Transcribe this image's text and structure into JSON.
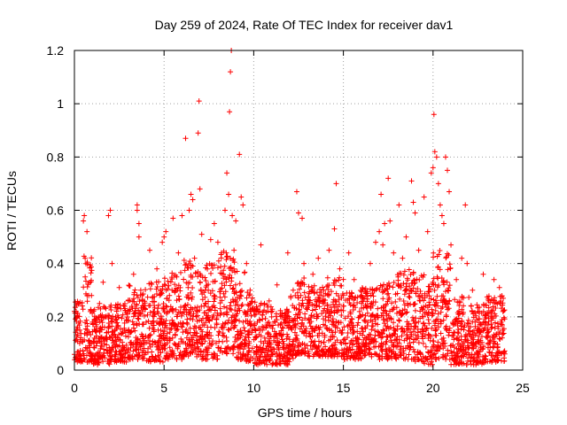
{
  "chart_data": {
    "type": "scatter",
    "title": "Day 259 of 2024, Rate Of TEC Index for receiver dav1",
    "xlabel": "GPS time / hours",
    "ylabel": "ROTI / TECUs",
    "xlim": [
      0,
      25
    ],
    "ylim": [
      0,
      1.2
    ],
    "xticks": [
      0,
      5,
      10,
      15,
      20,
      25
    ],
    "xtick_labels": [
      "0",
      "5",
      "10",
      "15",
      "20",
      "25"
    ],
    "yticks": [
      0,
      0.2,
      0.4,
      0.6,
      0.8,
      1,
      1.2
    ],
    "ytick_labels": [
      "0",
      "0.2",
      "0.4",
      "0.6",
      "0.8",
      "1",
      "1.2"
    ],
    "grid": true,
    "marker": "plus",
    "series": [
      {
        "name": "dav1",
        "color": "#ff0000",
        "points": [
          [
            0.1,
            0.22
          ],
          [
            0.3,
            0.15
          ],
          [
            0.5,
            0.56
          ],
          [
            0.55,
            0.58
          ],
          [
            0.6,
            0.42
          ],
          [
            0.6,
            0.35
          ],
          [
            0.7,
            0.52
          ],
          [
            0.8,
            0.28
          ],
          [
            1.0,
            0.18
          ],
          [
            1.2,
            0.12
          ],
          [
            1.4,
            0.25
          ],
          [
            1.6,
            0.33
          ],
          [
            1.8,
            0.14
          ],
          [
            1.9,
            0.58
          ],
          [
            2.0,
            0.6
          ],
          [
            2.1,
            0.4
          ],
          [
            2.3,
            0.2
          ],
          [
            2.5,
            0.31
          ],
          [
            2.8,
            0.15
          ],
          [
            3.0,
            0.26
          ],
          [
            3.3,
            0.36
          ],
          [
            3.5,
            0.62
          ],
          [
            3.5,
            0.6
          ],
          [
            3.6,
            0.55
          ],
          [
            3.6,
            0.5
          ],
          [
            3.7,
            0.3
          ],
          [
            4.0,
            0.18
          ],
          [
            4.2,
            0.45
          ],
          [
            4.4,
            0.22
          ],
          [
            4.6,
            0.38
          ],
          [
            4.9,
            0.48
          ],
          [
            5.0,
            0.5
          ],
          [
            5.1,
            0.52
          ],
          [
            5.3,
            0.28
          ],
          [
            5.5,
            0.57
          ],
          [
            5.7,
            0.35
          ],
          [
            5.8,
            0.44
          ],
          [
            6.0,
            0.58
          ],
          [
            6.2,
            0.87
          ],
          [
            6.4,
            0.6
          ],
          [
            6.5,
            0.66
          ],
          [
            6.6,
            0.64
          ],
          [
            6.7,
            0.42
          ],
          [
            6.9,
            0.89
          ],
          [
            6.95,
            1.01
          ],
          [
            7.0,
            0.68
          ],
          [
            7.1,
            0.51
          ],
          [
            7.3,
            0.3
          ],
          [
            7.6,
            0.49
          ],
          [
            7.8,
            0.55
          ],
          [
            8.0,
            0.48
          ],
          [
            8.2,
            0.44
          ],
          [
            8.4,
            0.6
          ],
          [
            8.5,
            0.74
          ],
          [
            8.6,
            0.66
          ],
          [
            8.65,
            0.97
          ],
          [
            8.7,
            1.12
          ],
          [
            8.75,
            1.2
          ],
          [
            8.8,
            0.58
          ],
          [
            8.9,
            0.45
          ],
          [
            9.0,
            0.56
          ],
          [
            9.2,
            0.81
          ],
          [
            9.3,
            0.65
          ],
          [
            9.4,
            0.62
          ],
          [
            9.6,
            0.4
          ],
          [
            9.8,
            0.3
          ],
          [
            10.0,
            0.22
          ],
          [
            10.2,
            0.18
          ],
          [
            10.4,
            0.47
          ],
          [
            10.6,
            0.25
          ],
          [
            10.8,
            0.14
          ],
          [
            11.0,
            0.2
          ],
          [
            11.3,
            0.32
          ],
          [
            11.6,
            0.16
          ],
          [
            11.9,
            0.44
          ],
          [
            12.2,
            0.3
          ],
          [
            12.4,
            0.67
          ],
          [
            12.5,
            0.59
          ],
          [
            12.7,
            0.57
          ],
          [
            12.8,
            0.4
          ],
          [
            13.0,
            0.25
          ],
          [
            13.3,
            0.36
          ],
          [
            13.6,
            0.42
          ],
          [
            13.9,
            0.3
          ],
          [
            14.2,
            0.45
          ],
          [
            14.5,
            0.53
          ],
          [
            14.6,
            0.7
          ],
          [
            14.8,
            0.38
          ],
          [
            15.0,
            0.28
          ],
          [
            15.3,
            0.44
          ],
          [
            15.6,
            0.34
          ],
          [
            15.9,
            0.22
          ],
          [
            16.2,
            0.3
          ],
          [
            16.5,
            0.4
          ],
          [
            16.8,
            0.48
          ],
          [
            17.0,
            0.52
          ],
          [
            17.1,
            0.66
          ],
          [
            17.2,
            0.47
          ],
          [
            17.3,
            0.55
          ],
          [
            17.5,
            0.72
          ],
          [
            17.6,
            0.56
          ],
          [
            17.8,
            0.44
          ],
          [
            18.1,
            0.62
          ],
          [
            18.3,
            0.42
          ],
          [
            18.5,
            0.5
          ],
          [
            18.8,
            0.71
          ],
          [
            18.9,
            0.63
          ],
          [
            19.0,
            0.59
          ],
          [
            19.2,
            0.45
          ],
          [
            19.5,
            0.65
          ],
          [
            19.7,
            0.52
          ],
          [
            19.9,
            0.74
          ],
          [
            20.0,
            0.76
          ],
          [
            20.05,
            0.96
          ],
          [
            20.1,
            0.82
          ],
          [
            20.2,
            0.8
          ],
          [
            20.3,
            0.7
          ],
          [
            20.4,
            0.62
          ],
          [
            20.5,
            0.58
          ],
          [
            20.6,
            0.55
          ],
          [
            20.7,
            0.8
          ],
          [
            20.8,
            0.75
          ],
          [
            20.9,
            0.67
          ],
          [
            21.0,
            0.47
          ],
          [
            21.3,
            0.34
          ],
          [
            21.6,
            0.42
          ],
          [
            21.8,
            0.62
          ],
          [
            21.9,
            0.4
          ],
          [
            22.2,
            0.3
          ],
          [
            22.5,
            0.22
          ],
          [
            22.8,
            0.36
          ],
          [
            23.1,
            0.26
          ],
          [
            23.4,
            0.34
          ],
          [
            23.7,
            0.31
          ],
          [
            23.9,
            0.22
          ]
        ],
        "bands": [
          [
            0.0,
            0.5,
            0.03,
            0.26
          ],
          [
            0.5,
            1.0,
            0.03,
            0.43
          ],
          [
            1.0,
            2.0,
            0.02,
            0.24
          ],
          [
            2.0,
            3.0,
            0.03,
            0.25
          ],
          [
            3.0,
            4.0,
            0.04,
            0.32
          ],
          [
            4.0,
            5.0,
            0.03,
            0.34
          ],
          [
            5.0,
            6.0,
            0.04,
            0.37
          ],
          [
            6.0,
            7.0,
            0.05,
            0.42
          ],
          [
            7.0,
            8.0,
            0.04,
            0.4
          ],
          [
            8.0,
            9.0,
            0.06,
            0.45
          ],
          [
            9.0,
            9.5,
            0.04,
            0.38
          ],
          [
            9.5,
            10.0,
            0.03,
            0.3
          ],
          [
            10.0,
            11.0,
            0.02,
            0.26
          ],
          [
            11.0,
            12.0,
            0.02,
            0.23
          ],
          [
            12.0,
            12.4,
            0.04,
            0.28
          ],
          [
            12.4,
            13.0,
            0.06,
            0.36
          ],
          [
            13.0,
            14.0,
            0.05,
            0.32
          ],
          [
            14.0,
            15.0,
            0.05,
            0.35
          ],
          [
            15.0,
            16.0,
            0.04,
            0.3
          ],
          [
            16.0,
            17.0,
            0.05,
            0.31
          ],
          [
            17.0,
            18.0,
            0.04,
            0.34
          ],
          [
            18.0,
            19.0,
            0.04,
            0.38
          ],
          [
            19.0,
            19.5,
            0.03,
            0.36
          ],
          [
            19.5,
            20.0,
            0.02,
            0.33
          ],
          [
            20.0,
            21.0,
            0.04,
            0.45
          ],
          [
            21.0,
            22.0,
            0.02,
            0.28
          ],
          [
            22.0,
            23.0,
            0.02,
            0.25
          ],
          [
            23.0,
            24.0,
            0.03,
            0.28
          ]
        ]
      }
    ]
  }
}
